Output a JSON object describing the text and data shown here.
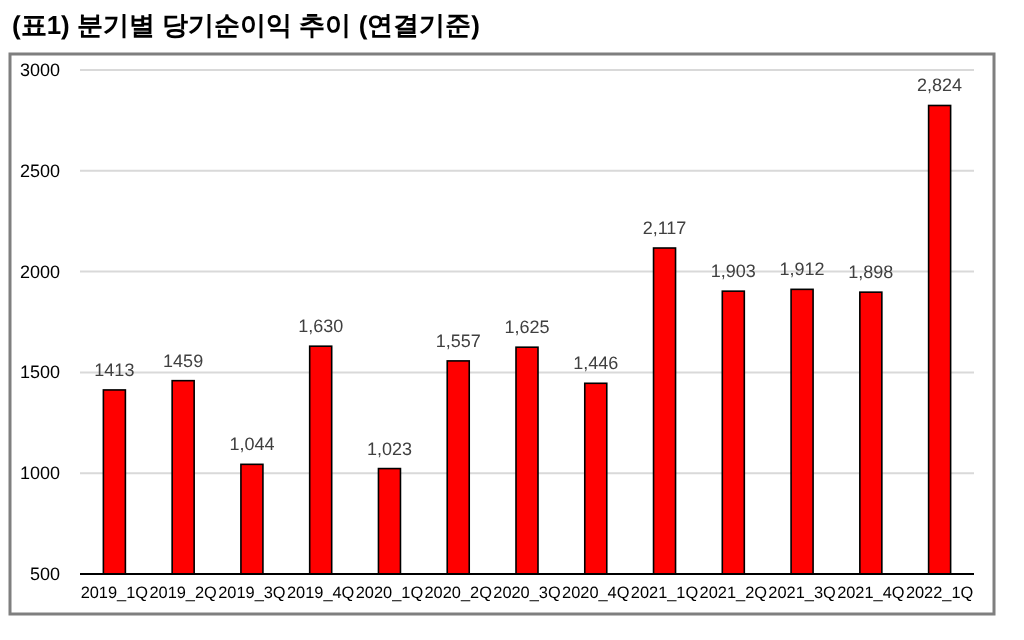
{
  "chart_data": {
    "type": "bar",
    "title": "(표1) 분기별 당기순이익 추이 (연결기준)",
    "categories": [
      "2019_1Q",
      "2019_2Q",
      "2019_3Q",
      "2019_4Q",
      "2020_1Q",
      "2020_2Q",
      "2020_3Q",
      "2020_4Q",
      "2021_1Q",
      "2021_2Q",
      "2021_3Q",
      "2021_4Q",
      "2022_1Q"
    ],
    "values": [
      1413,
      1459,
      1044,
      1630,
      1023,
      1557,
      1625,
      1446,
      2117,
      1903,
      1912,
      1898,
      2824
    ],
    "value_labels": [
      "1413",
      "1459",
      "1,044",
      "1,630",
      "1,023",
      "1,557",
      "1,625",
      "1,446",
      "2,117",
      "1,903",
      "1,912",
      "1,898",
      "2,824"
    ],
    "color": "#ff0000",
    "ylim": [
      500,
      3000
    ],
    "yticks": [
      500,
      1000,
      1500,
      2000,
      2500,
      3000
    ],
    "grid": "y"
  }
}
